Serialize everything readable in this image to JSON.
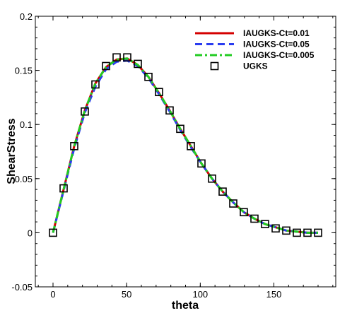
{
  "chart_data": {
    "type": "line",
    "title": "",
    "xlabel": "theta",
    "ylabel": "ShearStress",
    "xlim": [
      -12,
      192
    ],
    "ylim": [
      -0.05,
      0.2
    ],
    "xticks": [
      0,
      50,
      100,
      150
    ],
    "xtick_labels": [
      "0",
      "50",
      "100",
      "150"
    ],
    "yticks": [
      -0.05,
      0,
      0.05,
      0.1,
      0.15,
      0.2
    ],
    "ytick_labels": [
      "-0.05",
      "0",
      "0.05",
      "0.1",
      "0.15",
      "0.2"
    ],
    "grid": false,
    "legend_position": "top-right",
    "series": [
      {
        "name": "IAUGKS-Ct=0.01",
        "style": "solid",
        "color": "#d40000",
        "x": [
          0,
          7.2,
          14.4,
          21.6,
          28.8,
          36,
          43.2,
          50.4,
          57.6,
          64.8,
          72,
          79.2,
          86.4,
          93.6,
          100.8,
          108,
          115.2,
          122.4,
          129.6,
          136.8,
          144,
          151.2,
          158.4,
          165.6,
          172.8,
          180
        ],
        "y": [
          0,
          0.04,
          0.08,
          0.113,
          0.138,
          0.153,
          0.16,
          0.161,
          0.155,
          0.144,
          0.129,
          0.113,
          0.096,
          0.08,
          0.064,
          0.05,
          0.038,
          0.028,
          0.019,
          0.013,
          0.008,
          0.005,
          0.002,
          0.001,
          0,
          0
        ]
      },
      {
        "name": "IAUGKS-Ct=0.05",
        "style": "dashed",
        "color": "#2a3cf0",
        "x": [
          0,
          7.2,
          14.4,
          21.6,
          28.8,
          36,
          43.2,
          50.4,
          57.6,
          64.8,
          72,
          79.2,
          86.4,
          93.6,
          100.8,
          108,
          115.2,
          122.4,
          129.6,
          136.8,
          144,
          151.2,
          158.4,
          165.6,
          172.8,
          180
        ],
        "y": [
          0,
          0.039,
          0.078,
          0.111,
          0.135,
          0.151,
          0.158,
          0.159,
          0.154,
          0.143,
          0.128,
          0.112,
          0.095,
          0.079,
          0.064,
          0.05,
          0.038,
          0.028,
          0.019,
          0.013,
          0.008,
          0.005,
          0.002,
          0.001,
          0,
          0
        ]
      },
      {
        "name": "IAUGKS-Ct=0.005",
        "style": "dashdot",
        "color": "#22cc22",
        "x": [
          0,
          7.2,
          14.4,
          21.6,
          28.8,
          36,
          43.2,
          50.4,
          57.6,
          64.8,
          72,
          79.2,
          86.4,
          93.6,
          100.8,
          108,
          115.2,
          122.4,
          129.6,
          136.8,
          144,
          151.2,
          158.4,
          165.6,
          172.8,
          180
        ],
        "y": [
          0,
          0.04,
          0.08,
          0.113,
          0.138,
          0.153,
          0.16,
          0.161,
          0.155,
          0.144,
          0.129,
          0.113,
          0.096,
          0.08,
          0.064,
          0.05,
          0.038,
          0.028,
          0.019,
          0.013,
          0.008,
          0.005,
          0.002,
          0.001,
          0,
          0
        ]
      },
      {
        "name": "UGKS",
        "style": "markers",
        "marker": "square",
        "color": "#000000",
        "x": [
          0,
          7.2,
          14.4,
          21.6,
          28.8,
          36,
          43.2,
          50.4,
          57.6,
          64.8,
          72,
          79.2,
          86.4,
          93.6,
          100.8,
          108,
          115.2,
          122.4,
          129.6,
          136.8,
          144,
          151.2,
          158.4,
          165.6,
          172.8,
          180
        ],
        "y": [
          0,
          0.041,
          0.08,
          0.112,
          0.137,
          0.154,
          0.162,
          0.162,
          0.156,
          0.144,
          0.13,
          0.113,
          0.096,
          0.08,
          0.064,
          0.05,
          0.038,
          0.027,
          0.019,
          0.013,
          0.008,
          0.004,
          0.002,
          0,
          0,
          0
        ]
      }
    ]
  }
}
